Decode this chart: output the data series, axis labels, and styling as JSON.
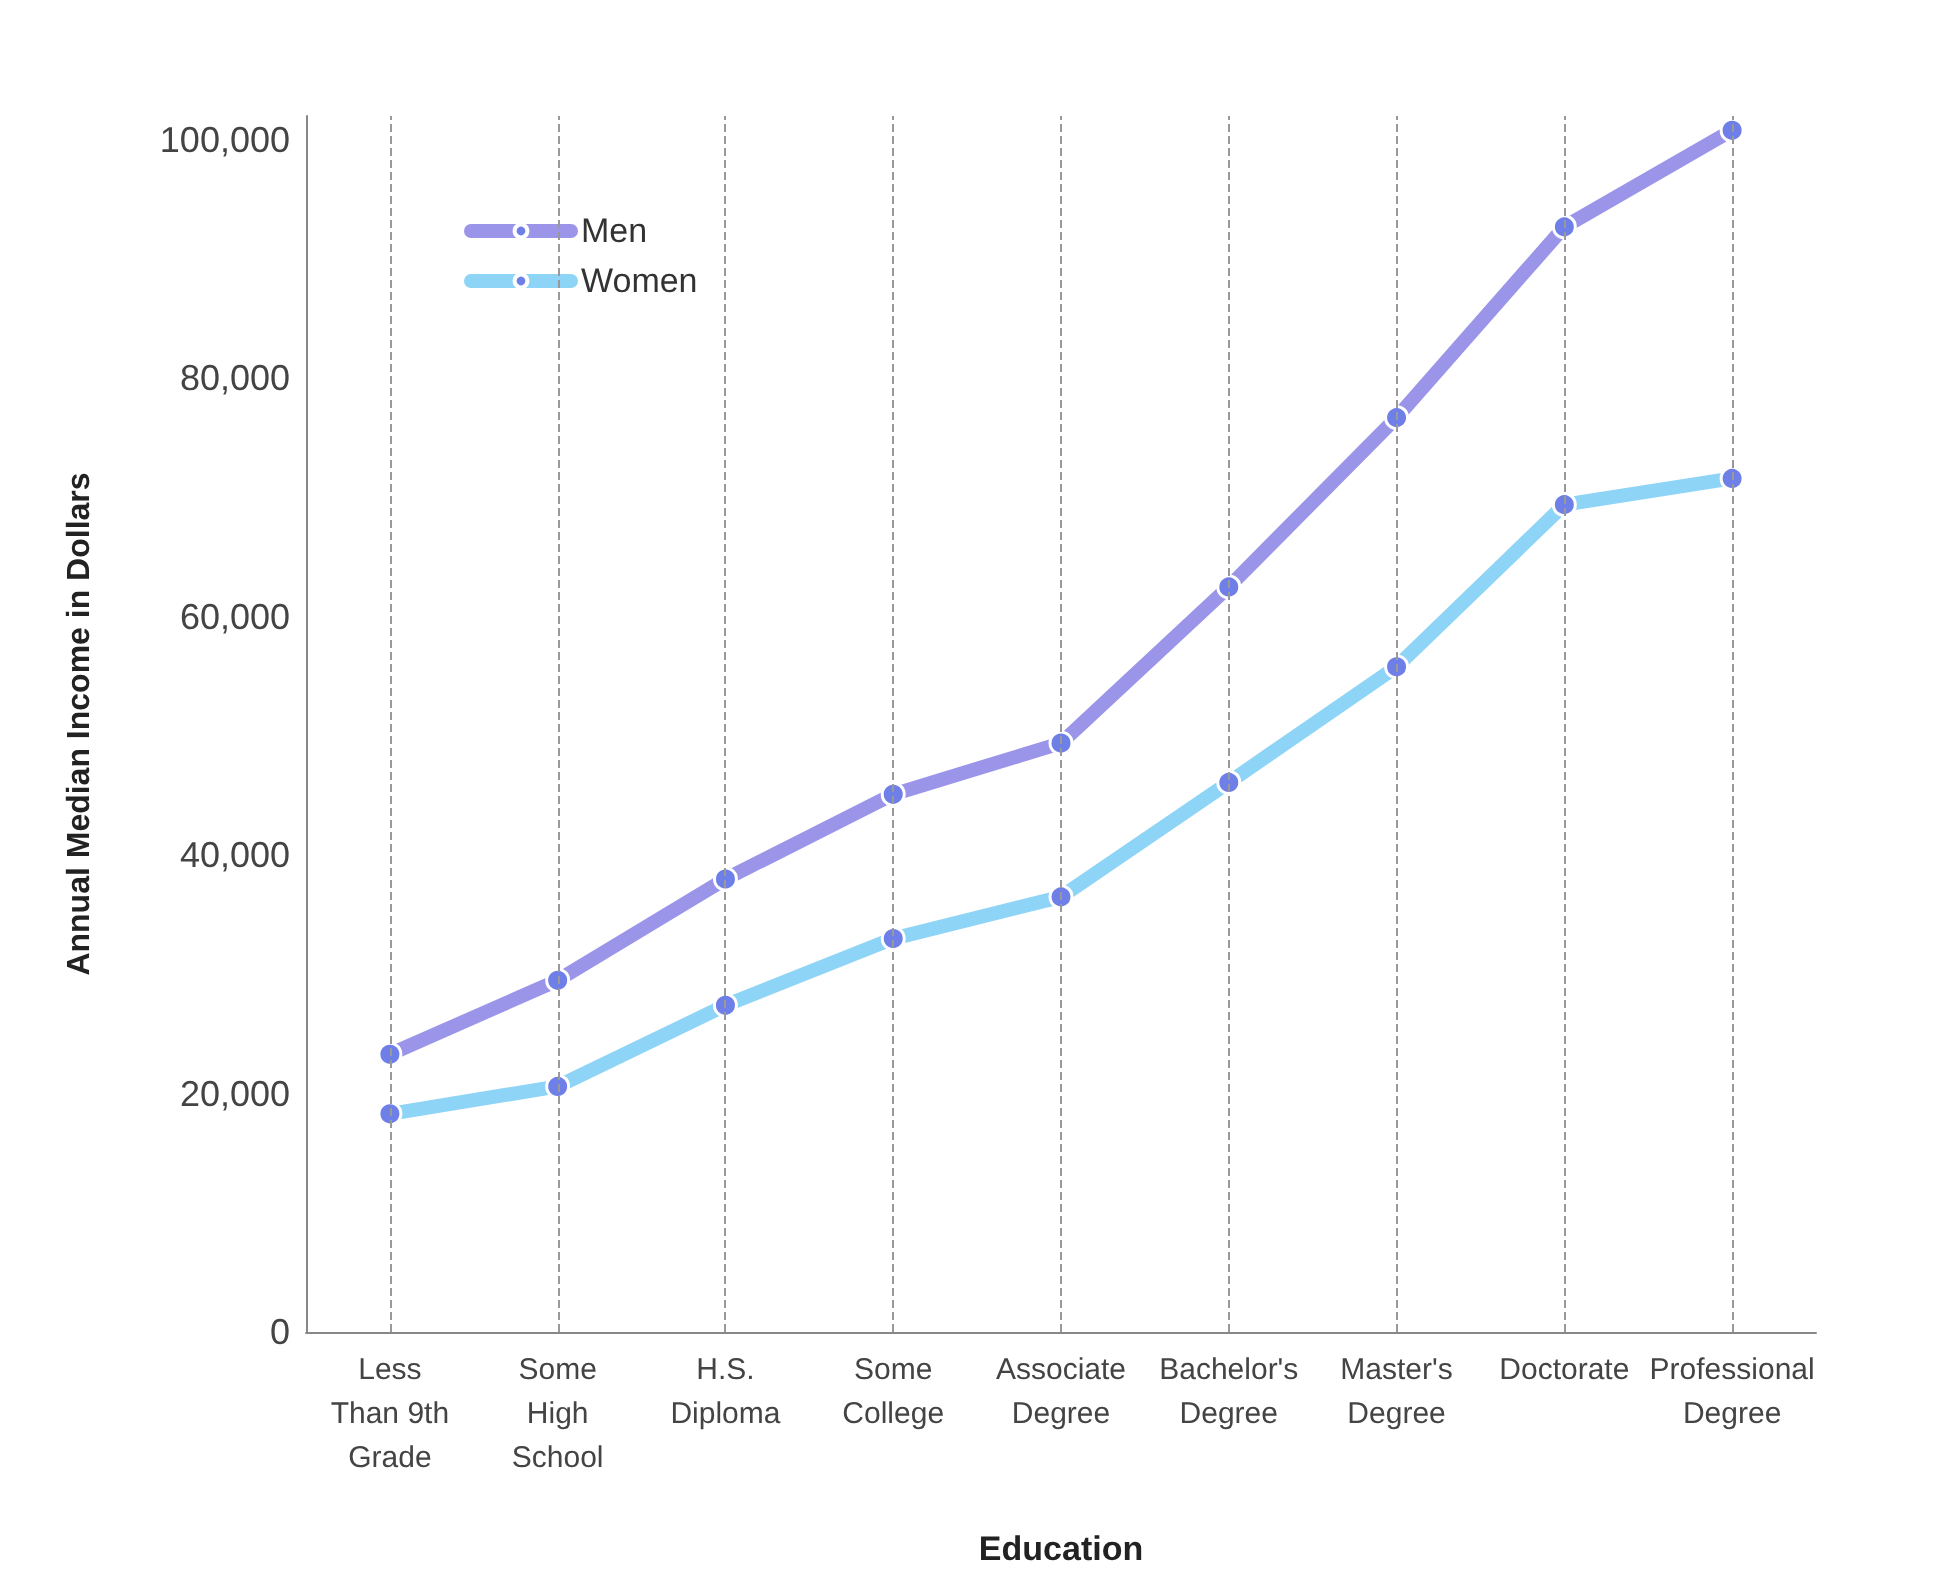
{
  "chart_data": {
    "type": "line",
    "xlabel": "Education",
    "ylabel": "Annual Median Income in Dollars",
    "categories": [
      "Less\nThan 9th\nGrade",
      "Some\nHigh\nSchool",
      "H.S.\nDiploma",
      "Some\nCollege",
      "Associate\nDegree",
      "Bachelor's\nDegree",
      "Master's\nDegree",
      "Doctorate",
      "Professional\nDegree"
    ],
    "series": [
      {
        "name": "Men",
        "color": "#9b95ea",
        "values": [
          23300,
          29500,
          38000,
          45100,
          49400,
          62500,
          76700,
          92700,
          100800
        ]
      },
      {
        "name": "Women",
        "color": "#8ed4f6",
        "values": [
          18300,
          20600,
          27400,
          33000,
          36500,
          46100,
          55800,
          69400,
          71600
        ]
      }
    ],
    "ylim": [
      0,
      102000
    ],
    "yticks": [
      0,
      {
        "value": 20000,
        "label": "20,000"
      },
      {
        "value": 40000,
        "label": "40,000"
      },
      {
        "value": 60000,
        "label": "60,000"
      },
      {
        "value": 80000,
        "label": "80,000"
      },
      {
        "value": 100000,
        "label": "100,000"
      }
    ],
    "grid": "x",
    "legend": "top left",
    "marker": "circle",
    "line_style": "solid"
  }
}
